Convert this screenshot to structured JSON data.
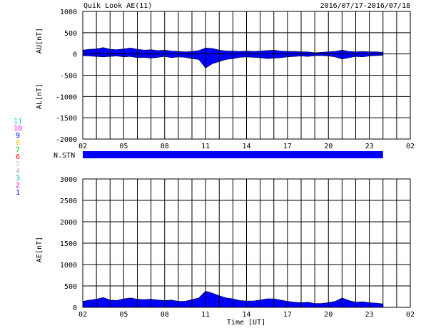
{
  "header": {
    "title": "Quik Look AE(11)",
    "date_range": "2016/07/17-2016/07/18"
  },
  "time_ticks": [
    "02",
    "05",
    "08",
    "11",
    "14",
    "17",
    "20",
    "23",
    "02"
  ],
  "xlabel": "Time [UT]",
  "colors": {
    "fill": "#0000ff",
    "grid": "#000000",
    "background": "#ffffff"
  },
  "station_legend": [
    {
      "label": "11",
      "color": "#00cccc"
    },
    {
      "label": "10",
      "color": "#ff00ff"
    },
    {
      "label": "9",
      "color": "#0000ff"
    },
    {
      "label": "8",
      "color": "#ffcc00"
    },
    {
      "label": "7",
      "color": "#00cc00"
    },
    {
      "label": "6",
      "color": "#ff0000"
    },
    {
      "label": "5",
      "color": "#cccccc"
    },
    {
      "label": "4",
      "color": "#aaaaaa"
    },
    {
      "label": "3",
      "color": "#00aaaa"
    },
    {
      "label": "2",
      "color": "#cc00cc"
    },
    {
      "label": "1",
      "color": "#0000cc"
    }
  ],
  "stn_label": "N.STN",
  "chart_data": [
    {
      "type": "area",
      "title": "Quik Look AE(11)",
      "ylabel_upper": "AU[nT]",
      "ylabel_lower": "AL[nT]",
      "xlabel": "",
      "xlim_hours": [
        2,
        26
      ],
      "ylim": [
        -2000,
        1000
      ],
      "yticks": [
        1000,
        500,
        0,
        -500,
        -1000,
        -1500,
        -2000
      ],
      "x_hours": [
        2,
        2.5,
        3,
        3.5,
        4,
        4.5,
        5,
        5.5,
        6,
        6.5,
        7,
        7.5,
        8,
        8.5,
        9,
        9.5,
        10,
        10.5,
        11,
        11.5,
        12,
        12.5,
        13,
        13.5,
        14,
        14.5,
        15,
        15.5,
        16,
        16.5,
        17,
        17.5,
        18,
        18.5,
        19,
        19.5,
        20,
        20.5,
        21,
        21.5,
        22,
        22.5,
        23,
        23.5,
        24
      ],
      "series": [
        {
          "values": [
            90,
            110,
            120,
            150,
            110,
            100,
            120,
            140,
            110,
            90,
            100,
            80,
            90,
            70,
            60,
            50,
            60,
            80,
            140,
            130,
            90,
            70,
            70,
            60,
            70,
            60,
            70,
            80,
            90,
            70,
            60,
            60,
            50,
            50,
            30,
            40,
            50,
            60,
            90,
            60,
            50,
            60,
            50,
            50,
            40
          ]
        },
        {
          "values": [
            -40,
            -50,
            -60,
            -70,
            -60,
            -50,
            -70,
            -60,
            -90,
            -80,
            -100,
            -80,
            -60,
            -90,
            -70,
            -80,
            -110,
            -130,
            -330,
            -230,
            -180,
            -130,
            -110,
            -80,
            -70,
            -80,
            -90,
            -110,
            -100,
            -90,
            -70,
            -60,
            -50,
            -60,
            -40,
            -40,
            -50,
            -70,
            -120,
            -90,
            -60,
            -70,
            -50,
            -40,
            -30
          ]
        }
      ]
    },
    {
      "type": "area",
      "xlabel": "Time [UT]",
      "ylabel": "AE[nT]",
      "xlim_hours": [
        2,
        26
      ],
      "ylim": [
        0,
        3000
      ],
      "yticks": [
        3000,
        2500,
        2000,
        1500,
        1000,
        500,
        0
      ],
      "x_hours": [
        2,
        2.5,
        3,
        3.5,
        4,
        4.5,
        5,
        5.5,
        6,
        6.5,
        7,
        7.5,
        8,
        8.5,
        9,
        9.5,
        10,
        10.5,
        11,
        11.5,
        12,
        12.5,
        13,
        13.5,
        14,
        14.5,
        15,
        15.5,
        16,
        16.5,
        17,
        17.5,
        18,
        18.5,
        19,
        19.5,
        20,
        20.5,
        21,
        21.5,
        22,
        22.5,
        23,
        23.5,
        24
      ],
      "series": [
        {
          "values": [
            140,
            170,
            190,
            230,
            170,
            160,
            200,
            220,
            190,
            180,
            190,
            170,
            160,
            170,
            140,
            140,
            180,
            220,
            380,
            330,
            270,
            220,
            200,
            160,
            150,
            150,
            170,
            200,
            200,
            170,
            140,
            120,
            110,
            120,
            90,
            90,
            110,
            140,
            220,
            160,
            120,
            130,
            110,
            100,
            80
          ]
        }
      ]
    }
  ]
}
